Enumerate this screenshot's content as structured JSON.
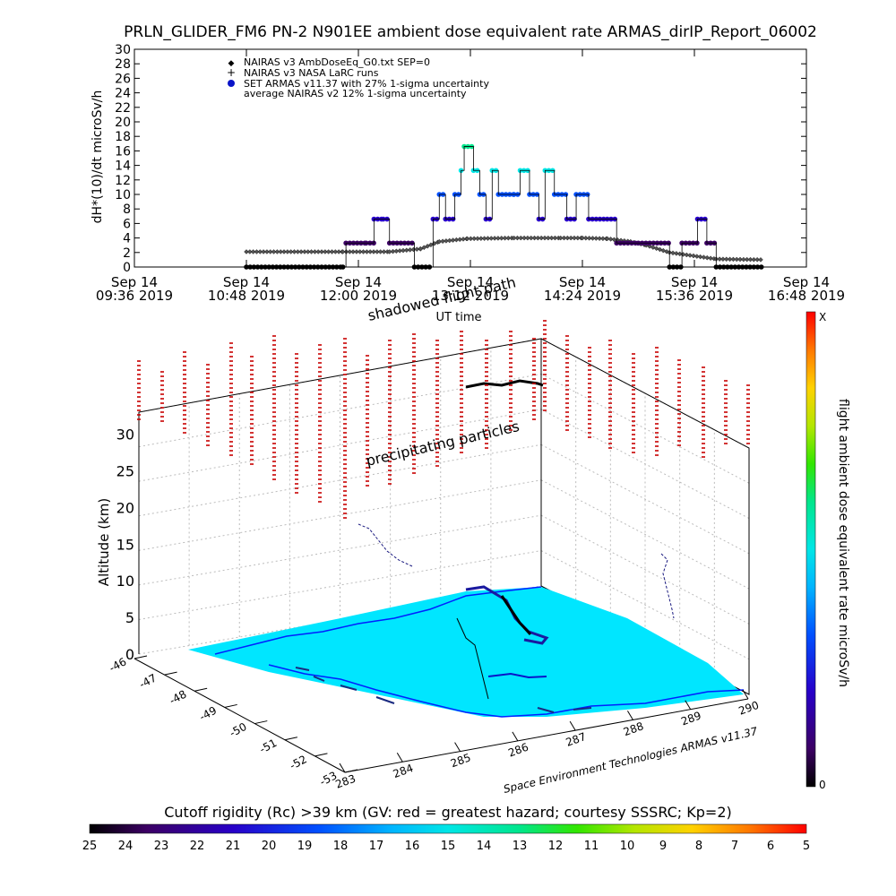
{
  "chart_data": [
    {
      "type": "scatter",
      "title": "PRLN_GLIDER_FM6 PN-2 N901EE ambient dose equivalent rate ARMAS_dirIP_Report_06002",
      "xlabel": "UT time",
      "ylabel": "dH*(10)/dt microSv/h",
      "ylim": [
        0,
        30
      ],
      "y_ticks": [
        "0",
        "2",
        "4",
        "6",
        "8",
        "10",
        "12",
        "14",
        "16",
        "18",
        "20",
        "22",
        "24",
        "26",
        "28",
        "30"
      ],
      "x_ticks": [
        {
          "top": "Sep 14",
          "bottom": "09:36 2019"
        },
        {
          "top": "Sep 14",
          "bottom": "10:48 2019"
        },
        {
          "top": "Sep 14",
          "bottom": "12:00 2019"
        },
        {
          "top": "Sep 14",
          "bottom": "13:12 2019"
        },
        {
          "top": "Sep 14",
          "bottom": "14:24 2019"
        },
        {
          "top": "Sep 14",
          "bottom": "15:36 2019"
        },
        {
          "top": "Sep 14",
          "bottom": "16:48 2019"
        }
      ],
      "legend": [
        {
          "symbol": "◆",
          "label": "NAIRAS v3 AmbDoseEq_G0.txt SEP=0"
        },
        {
          "symbol": "+",
          "label": "NAIRAS v3 NASA LaRC runs"
        },
        {
          "symbol": "●",
          "label": "SET ARMAS v11.37 with 27% 1-sigma uncertainty"
        },
        {
          "symbol": "",
          "label": "average NAIRAS v2 12% 1-sigma uncertainty"
        }
      ],
      "legend_position": "top-left",
      "series": [
        {
          "name": "NAIRAS v3 AmbDoseEq_G0.txt SEP=0",
          "x": [
            "10:48",
            "11:50",
            "12:20",
            "12:40",
            "12:52",
            "13:10",
            "13:40",
            "14:10",
            "14:24",
            "14:40",
            "14:55",
            "15:05",
            "15:20",
            "15:50",
            "16:20"
          ],
          "values": [
            2.1,
            2.1,
            2.1,
            2.5,
            3.5,
            3.9,
            4.0,
            4.0,
            4.0,
            3.9,
            3.5,
            3.0,
            2.0,
            1.1,
            1.0
          ]
        },
        {
          "name": "SET ARMAS v11.37 with 27% 1-sigma uncertainty",
          "points": [
            {
              "x": "10:48",
              "y": 0
            },
            {
              "x": "11:50",
              "y": 0
            },
            {
              "x": "11:52",
              "y": 3.3
            },
            {
              "x": "12:05",
              "y": 3.3
            },
            {
              "x": "12:10",
              "y": 6.6
            },
            {
              "x": "12:16",
              "y": 6.6
            },
            {
              "x": "12:20",
              "y": 3.3
            },
            {
              "x": "12:36",
              "y": 0
            },
            {
              "x": "12:48",
              "y": 6.6
            },
            {
              "x": "12:52",
              "y": 10
            },
            {
              "x": "12:56",
              "y": 6.6
            },
            {
              "x": "13:02",
              "y": 10
            },
            {
              "x": "13:06",
              "y": 13.3
            },
            {
              "x": "13:08",
              "y": 16.6
            },
            {
              "x": "13:14",
              "y": 13.3
            },
            {
              "x": "13:18",
              "y": 10
            },
            {
              "x": "13:22",
              "y": 6.6
            },
            {
              "x": "13:26",
              "y": 13.3
            },
            {
              "x": "13:30",
              "y": 10
            },
            {
              "x": "13:40",
              "y": 10
            },
            {
              "x": "13:44",
              "y": 13.3
            },
            {
              "x": "13:50",
              "y": 10
            },
            {
              "x": "13:56",
              "y": 6.6
            },
            {
              "x": "14:00",
              "y": 13.3
            },
            {
              "x": "14:06",
              "y": 10
            },
            {
              "x": "14:14",
              "y": 6.6
            },
            {
              "x": "14:20",
              "y": 10
            },
            {
              "x": "14:28",
              "y": 6.6
            },
            {
              "x": "14:40",
              "y": 6.6
            },
            {
              "x": "14:46",
              "y": 3.3
            },
            {
              "x": "15:00",
              "y": 3.3
            },
            {
              "x": "15:20",
              "y": 0
            },
            {
              "x": "15:28",
              "y": 3.3
            },
            {
              "x": "15:38",
              "y": 6.6
            },
            {
              "x": "15:44",
              "y": 3.3
            },
            {
              "x": "15:50",
              "y": 0
            },
            {
              "x": "16:20",
              "y": 0
            }
          ]
        }
      ]
    },
    {
      "type": "scatter",
      "xlabel": "",
      "ylabel": "Altitude (km)",
      "z_ticks": [
        "0",
        "5",
        "10",
        "15",
        "20",
        "25",
        "30"
      ],
      "lat_ticks": [
        "-46",
        "-47",
        "-48",
        "-49",
        "-50",
        "-51",
        "-52",
        "-53"
      ],
      "lon_ticks": [
        "283",
        "284",
        "285",
        "286",
        "287",
        "288",
        "289",
        "290"
      ],
      "annotations": [
        "shadowed flight path",
        "precipitating particles",
        "Space Environment Technologies ARMAS v11.37"
      ],
      "colorbar": {
        "label": "flight ambient dose equivalent rate microSv/h",
        "top_label": "X",
        "bottom_label": "0"
      }
    }
  ],
  "bottom_colorbar": {
    "title": "Cutoff rigidity (Rc) >39 km (GV: red = greatest hazard; courtesy SSSRC; Kp=2)",
    "ticks": [
      "25",
      "24",
      "23",
      "22",
      "21",
      "20",
      "19",
      "18",
      "17",
      "16",
      "15",
      "14",
      "13",
      "12",
      "11",
      "10",
      "9",
      "8",
      "7",
      "6",
      "5"
    ]
  },
  "colors": {
    "rainbow": [
      "#000000",
      "#3c0064",
      "#2800c8",
      "#0050ff",
      "#00b4ff",
      "#00e6e6",
      "#00e68c",
      "#32e600",
      "#b4e600",
      "#ffd200",
      "#ff7800",
      "#ff0000"
    ],
    "land": "#00e6ff",
    "coast": "#0020ff",
    "particles": "#c80000"
  }
}
